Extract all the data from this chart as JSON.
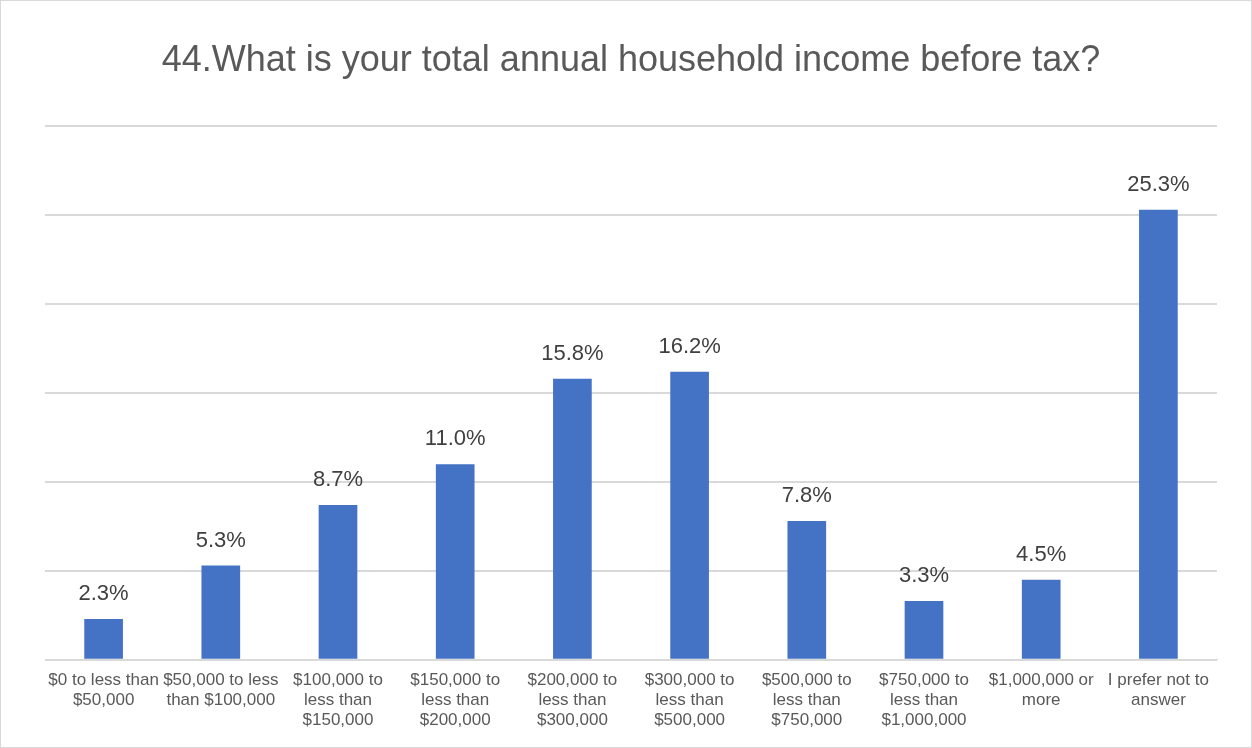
{
  "chart_data": {
    "type": "bar",
    "title": "44.What is your total annual household income before tax?",
    "categories": [
      "$0 to less than $50,000",
      "$50,000 to less than $100,000",
      "$100,000 to less than $150,000",
      "$150,000 to less than $200,000",
      "$200,000 to less than $300,000",
      "$300,000 to less than $500,000",
      "$500,000 to less than $750,000",
      "$750,000 to less than $1,000,000",
      "$1,000,000 or more",
      "I prefer not to answer"
    ],
    "values": [
      2.3,
      5.3,
      8.7,
      11.0,
      15.8,
      16.2,
      7.8,
      3.3,
      4.5,
      25.3
    ],
    "value_labels": [
      "2.3%",
      "5.3%",
      "8.7%",
      "11.0%",
      "15.8%",
      "16.2%",
      "7.8%",
      "3.3%",
      "4.5%",
      "25.3%"
    ],
    "color": "#4472c4",
    "ylim": [
      0,
      30
    ],
    "yticks": [
      {
        "value": 0,
        "label": null
      },
      {
        "value": 5,
        "label": null
      },
      {
        "value": 10,
        "label": null
      },
      {
        "value": 15,
        "label": null
      },
      {
        "value": 20,
        "label": null
      },
      {
        "value": 25,
        "label": null
      },
      {
        "value": 30,
        "label": null
      }
    ],
    "grid": "y",
    "legend": false
  }
}
